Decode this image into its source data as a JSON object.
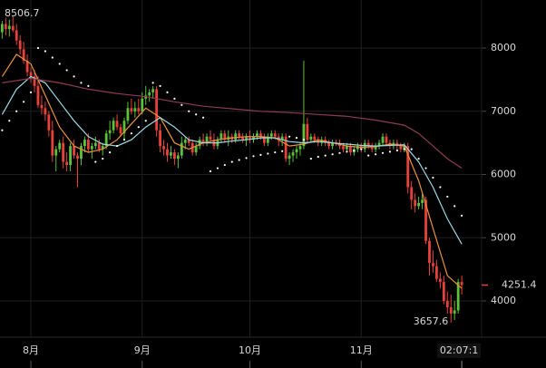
{
  "chart_data": {
    "type": "candlestick",
    "up_color": "#5cc23a",
    "down_color": "#e8413a",
    "grid": true,
    "time_label": "02:07:1",
    "xlim": [
      -0.6,
      135.8
    ],
    "ylim": [
      3427,
      8760
    ],
    "yticks": [
      4000,
      5000,
      6000,
      7000,
      8000
    ],
    "xticks": [
      {
        "value": 8,
        "label": "8月"
      },
      {
        "value": 39,
        "label": "9月"
      },
      {
        "value": 69,
        "label": "10月"
      },
      {
        "value": 100,
        "label": "11月"
      }
    ],
    "x": [
      0,
      1,
      2,
      3,
      4,
      5,
      6,
      7,
      8,
      9,
      10,
      11,
      12,
      13,
      14,
      15,
      16,
      17,
      18,
      19,
      20,
      21,
      22,
      23,
      24,
      25,
      26,
      27,
      28,
      29,
      30,
      31,
      32,
      33,
      34,
      35,
      36,
      37,
      38,
      39,
      40,
      41,
      42,
      43,
      44,
      45,
      46,
      47,
      48,
      49,
      50,
      51,
      52,
      53,
      54,
      55,
      56,
      57,
      58,
      59,
      60,
      61,
      62,
      63,
      64,
      65,
      66,
      67,
      68,
      69,
      70,
      71,
      72,
      73,
      74,
      75,
      76,
      77,
      78,
      79,
      80,
      81,
      82,
      83,
      84,
      85,
      86,
      87,
      88,
      89,
      90,
      91,
      92,
      93,
      94,
      95,
      96,
      97,
      98,
      99,
      100,
      101,
      102,
      103,
      104,
      105,
      106,
      107,
      108,
      109,
      110,
      111,
      112,
      113,
      114,
      115,
      116,
      117,
      118,
      119,
      120,
      121,
      122,
      123,
      124,
      125,
      126,
      127,
      128
    ],
    "open": [
      8250,
      8380,
      8300,
      8350,
      8280,
      8120,
      7980,
      7800,
      7620,
      7550,
      7400,
      7100,
      7050,
      6950,
      6700,
      6300,
      6400,
      6500,
      6200,
      6150,
      6450,
      6300,
      6250,
      6450,
      6550,
      6400,
      6450,
      6500,
      6400,
      6450,
      6650,
      6700,
      6850,
      6750,
      6650,
      6850,
      7050,
      7000,
      7050,
      7000,
      7200,
      7250,
      7300,
      7350,
      6700,
      6450,
      6400,
      6300,
      6350,
      6250,
      6300,
      6500,
      6550,
      6500,
      6350,
      6450,
      6550,
      6500,
      6600,
      6550,
      6450,
      6550,
      6650,
      6550,
      6600,
      6550,
      6650,
      6600,
      6550,
      6600,
      6550,
      6600,
      6650,
      6600,
      6500,
      6600,
      6650,
      6600,
      6550,
      6600,
      6250,
      6300,
      6350,
      6400,
      6450,
      6800,
      6550,
      6600,
      6550,
      6500,
      6550,
      6500,
      6450,
      6500,
      6480,
      6450,
      6400,
      6450,
      6350,
      6400,
      6450,
      6400,
      6500,
      6450,
      6400,
      6450,
      6500,
      6600,
      6500,
      6450,
      6500,
      6450,
      6400,
      6450,
      5800,
      5600,
      5500,
      5550,
      5600,
      4950,
      4600,
      4550,
      4350,
      4300,
      4000,
      3900,
      3800,
      3850,
      4300
    ],
    "high": [
      8430,
      8480,
      8450,
      8506.7,
      8380,
      8200,
      8100,
      7900,
      7700,
      7650,
      7550,
      7250,
      7150,
      7000,
      6850,
      6450,
      6550,
      6600,
      6350,
      6500,
      6550,
      6350,
      6500,
      6600,
      6650,
      6500,
      6600,
      6550,
      6500,
      6700,
      6850,
      6900,
      6950,
      6800,
      6900,
      7150,
      7200,
      7150,
      7200,
      7300,
      7400,
      7350,
      7400,
      7400,
      6800,
      6550,
      6500,
      6450,
      6400,
      6350,
      6600,
      6600,
      6600,
      6550,
      6500,
      6600,
      6650,
      6650,
      6700,
      6650,
      6600,
      6700,
      6700,
      6700,
      6650,
      6700,
      6700,
      6650,
      6650,
      6700,
      6650,
      6700,
      6700,
      6650,
      6650,
      6700,
      6700,
      6650,
      6650,
      6650,
      6350,
      6400,
      6450,
      6500,
      7800,
      6900,
      6650,
      6650,
      6600,
      6600,
      6600,
      6550,
      6550,
      6550,
      6550,
      6500,
      6500,
      6500,
      6450,
      6500,
      6500,
      6550,
      6550,
      6500,
      6500,
      6550,
      6650,
      6650,
      6550,
      6550,
      6550,
      6500,
      6500,
      6500,
      5900,
      5700,
      5650,
      5700,
      5650,
      5000,
      4800,
      4650,
      4450,
      4400,
      4150,
      4100,
      4000,
      4350,
      4400
    ],
    "low": [
      8150,
      8200,
      8180,
      8250,
      8050,
      7900,
      7750,
      7550,
      7450,
      7300,
      7050,
      6950,
      6850,
      6600,
      6200,
      6050,
      6350,
      6100,
      6050,
      6050,
      6250,
      5800,
      6150,
      6350,
      6350,
      6250,
      6400,
      6350,
      6300,
      6400,
      6550,
      6650,
      6700,
      6600,
      6550,
      6800,
      6950,
      6900,
      6950,
      6950,
      7100,
      7150,
      7200,
      6600,
      6350,
      6300,
      6200,
      6250,
      6150,
      6100,
      6250,
      6400,
      6450,
      6300,
      6300,
      6400,
      6450,
      6450,
      6500,
      6400,
      6400,
      6500,
      6500,
      6450,
      6500,
      6500,
      6550,
      6500,
      6450,
      6500,
      6500,
      6550,
      6550,
      6450,
      6450,
      6550,
      6550,
      6450,
      6450,
      6200,
      6150,
      6200,
      6250,
      6300,
      6400,
      6500,
      6500,
      6500,
      6450,
      6450,
      6450,
      6400,
      6400,
      6450,
      6400,
      6350,
      6350,
      6300,
      6300,
      6350,
      6350,
      6350,
      6400,
      6350,
      6350,
      6400,
      6450,
      6450,
      6400,
      6400,
      6400,
      6350,
      6350,
      5700,
      5450,
      5400,
      5450,
      5450,
      4900,
      4400,
      4450,
      4300,
      4200,
      3950,
      3800,
      3657.6,
      3700,
      3800,
      4100
    ],
    "close": [
      8380,
      8300,
      8350,
      8280,
      8120,
      7980,
      7800,
      7620,
      7550,
      7400,
      7100,
      7050,
      6950,
      6700,
      6300,
      6400,
      6500,
      6200,
      6150,
      6450,
      6300,
      6250,
      6450,
      6550,
      6400,
      6450,
      6500,
      6400,
      6450,
      6650,
      6700,
      6850,
      6750,
      6650,
      6850,
      7050,
      7000,
      7050,
      7000,
      7200,
      7250,
      7300,
      7350,
      6700,
      6450,
      6400,
      6300,
      6350,
      6250,
      6300,
      6500,
      6550,
      6500,
      6350,
      6450,
      6550,
      6500,
      6600,
      6550,
      6450,
      6550,
      6650,
      6550,
      6600,
      6550,
      6650,
      6600,
      6550,
      6600,
      6550,
      6600,
      6650,
      6600,
      6500,
      6600,
      6650,
      6600,
      6550,
      6600,
      6250,
      6300,
      6350,
      6400,
      6450,
      6800,
      6550,
      6600,
      6550,
      6500,
      6550,
      6500,
      6450,
      6500,
      6480,
      6450,
      6400,
      6450,
      6350,
      6400,
      6450,
      6400,
      6500,
      6450,
      6400,
      6450,
      6500,
      6600,
      6500,
      6450,
      6500,
      6450,
      6400,
      6450,
      5800,
      5600,
      5500,
      5550,
      5600,
      4950,
      4600,
      4550,
      4350,
      4300,
      4000,
      3900,
      3800,
      3850,
      4300,
      4251.4
    ],
    "overlays": [
      {
        "type": "line",
        "color": "#e8913a",
        "x": [
          0,
          4,
          8,
          12,
          16,
          20,
          24,
          28,
          32,
          36,
          40,
          44,
          48,
          52,
          56,
          60,
          64,
          68,
          72,
          76,
          80,
          84,
          88,
          92,
          96,
          100,
          104,
          108,
          112,
          116,
          120,
          124,
          128
        ],
        "values": [
          7550,
          7900,
          7750,
          7250,
          6750,
          6450,
          6350,
          6400,
          6550,
          6800,
          7050,
          6900,
          6500,
          6400,
          6500,
          6550,
          6580,
          6600,
          6600,
          6580,
          6450,
          6480,
          6550,
          6500,
          6450,
          6430,
          6440,
          6480,
          6450,
          5900,
          5150,
          4400,
          4200
        ]
      },
      {
        "type": "line",
        "color": "#9ad8e6",
        "x": [
          0,
          4,
          8,
          12,
          16,
          20,
          24,
          28,
          32,
          36,
          40,
          44,
          48,
          52,
          56,
          60,
          64,
          68,
          72,
          76,
          80,
          84,
          88,
          92,
          96,
          100,
          104,
          108,
          112,
          116,
          120,
          124,
          128
        ],
        "values": [
          6950,
          7350,
          7550,
          7450,
          7150,
          6850,
          6600,
          6480,
          6450,
          6550,
          6750,
          6900,
          6750,
          6550,
          6500,
          6500,
          6530,
          6550,
          6580,
          6580,
          6520,
          6500,
          6520,
          6500,
          6480,
          6460,
          6450,
          6460,
          6470,
          6200,
          5800,
          5300,
          4900
        ]
      },
      {
        "type": "line",
        "color": "#8e3b52",
        "x": [
          0,
          8,
          16,
          24,
          32,
          40,
          48,
          56,
          64,
          72,
          80,
          88,
          96,
          104,
          112,
          116,
          120,
          124,
          128
        ],
        "values": [
          7450,
          7520,
          7450,
          7350,
          7280,
          7230,
          7150,
          7080,
          7040,
          7000,
          6980,
          6950,
          6920,
          6860,
          6780,
          6650,
          6450,
          6250,
          6100
        ]
      },
      {
        "type": "dots",
        "color": "#ffffff",
        "x": [
          0,
          2,
          4,
          6,
          8,
          10,
          12,
          14,
          16,
          18,
          20,
          22,
          24,
          26,
          28,
          30,
          32,
          34,
          36,
          38,
          40,
          42,
          44,
          46,
          48,
          50,
          52,
          54,
          56,
          58,
          60,
          62,
          64,
          66,
          68,
          70,
          72,
          74,
          76,
          78,
          80,
          82,
          84,
          86,
          88,
          90,
          92,
          94,
          96,
          98,
          100,
          102,
          104,
          106,
          108,
          110,
          112,
          114,
          116,
          118,
          120,
          122,
          124,
          126,
          128
        ],
        "values": [
          6700,
          6850,
          7000,
          7150,
          7300,
          8000,
          7950,
          7850,
          7750,
          7650,
          7550,
          7450,
          7400,
          6200,
          6250,
          6350,
          6450,
          6550,
          6650,
          6750,
          6850,
          7450,
          7400,
          7300,
          7200,
          7100,
          7000,
          6950,
          6900,
          6050,
          6100,
          6150,
          6200,
          6230,
          6260,
          6290,
          6310,
          6330,
          6350,
          6370,
          6600,
          6580,
          6550,
          6250,
          6280,
          6300,
          6320,
          6340,
          6360,
          6380,
          6400,
          6300,
          6320,
          6340,
          6360,
          6380,
          6400,
          6400,
          6250,
          6100,
          5950,
          5800,
          5650,
          5500,
          5350
        ]
      }
    ]
  }
}
